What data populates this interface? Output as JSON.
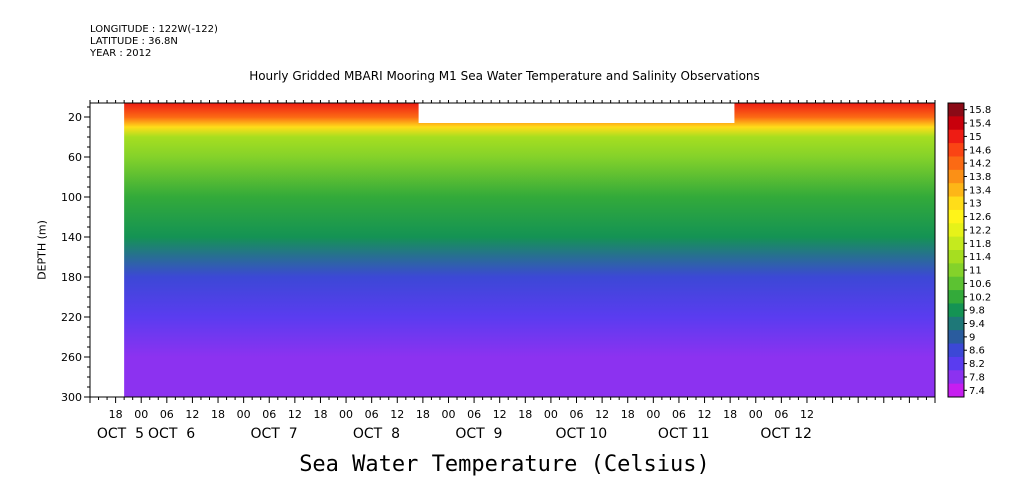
{
  "header": {
    "longitude": "LONGITUDE : 122W(-122)",
    "latitude": "LATITUDE : 36.8N",
    "year": "YEAR : 2012"
  },
  "chart_data": {
    "type": "heatmap",
    "title": "Hourly Gridded MBARI Mooring M1 Sea Water Temperature and Salinity Observations",
    "variable_label": "Sea Water Temperature (Celsius)",
    "ylabel": "DEPTH (m)",
    "y_axis": {
      "ticks": [
        20,
        60,
        100,
        140,
        180,
        220,
        260,
        300
      ],
      "range": [
        6,
        300
      ],
      "inverted": true
    },
    "x_axis": {
      "hour_ticks": [
        "18",
        "00",
        "06",
        "12",
        "18",
        "00",
        "06",
        "12",
        "18",
        "00",
        "06",
        "12",
        "18",
        "00",
        "06",
        "12",
        "18",
        "00",
        "06",
        "12",
        "18",
        "00",
        "06",
        "12",
        "18",
        "00",
        "06",
        "12"
      ],
      "day_labels": [
        "OCT  5",
        "OCT  6",
        "OCT  7",
        "OCT  8",
        "OCT  9",
        "OCT 10",
        "OCT 11",
        "OCT 12"
      ],
      "day_label_hour_index": [
        0.5,
        2.5,
        6.5,
        10.5,
        14.5,
        18.5,
        22.5,
        26.5
      ],
      "start": "OCT 4 12:00",
      "end": "OCT 12 18:00",
      "data_start": "OCT 4 20:00"
    },
    "colorbar": {
      "levels": [
        15.8,
        15.4,
        15,
        14.6,
        14.2,
        13.8,
        13.4,
        13,
        12.6,
        12.2,
        11.8,
        11.4,
        11,
        10.6,
        10.2,
        9.8,
        9.4,
        9,
        8.6,
        8.2,
        7.8,
        7.4
      ],
      "colors": [
        "#8b0a16",
        "#c8000c",
        "#ee1c14",
        "#fa4414",
        "#fb6a14",
        "#fb9016",
        "#fdb617",
        "#ffdd19",
        "#fff419",
        "#e6f219",
        "#c5ea1e",
        "#a6de20",
        "#84d22a",
        "#5cc232",
        "#33aa3a",
        "#149354",
        "#1e7878",
        "#2a5c9e",
        "#3c48d6",
        "#5a3cf0",
        "#8c32f0",
        "#c61ef0"
      ]
    },
    "depth_profile": [
      {
        "depth": 6,
        "temp": 15.0
      },
      {
        "depth": 20,
        "temp": 14.4
      },
      {
        "depth": 30,
        "temp": 13.0
      },
      {
        "depth": 40,
        "temp": 11.4
      },
      {
        "depth": 60,
        "temp": 11.0
      },
      {
        "depth": 100,
        "temp": 10.4
      },
      {
        "depth": 140,
        "temp": 9.8
      },
      {
        "depth": 180,
        "temp": 8.9
      },
      {
        "depth": 220,
        "temp": 8.4
      },
      {
        "depth": 260,
        "temp": 8.1
      },
      {
        "depth": 300,
        "temp": 7.8
      }
    ],
    "missing_data": [
      {
        "time_start": "OCT 4 12:00",
        "time_end": "OCT 4 20:00",
        "depth_range": [
          6,
          300
        ]
      },
      {
        "time_start": "OCT 7 17:00",
        "time_end": "OCT 10 19:00",
        "depth_range": [
          6,
          26
        ]
      }
    ]
  }
}
